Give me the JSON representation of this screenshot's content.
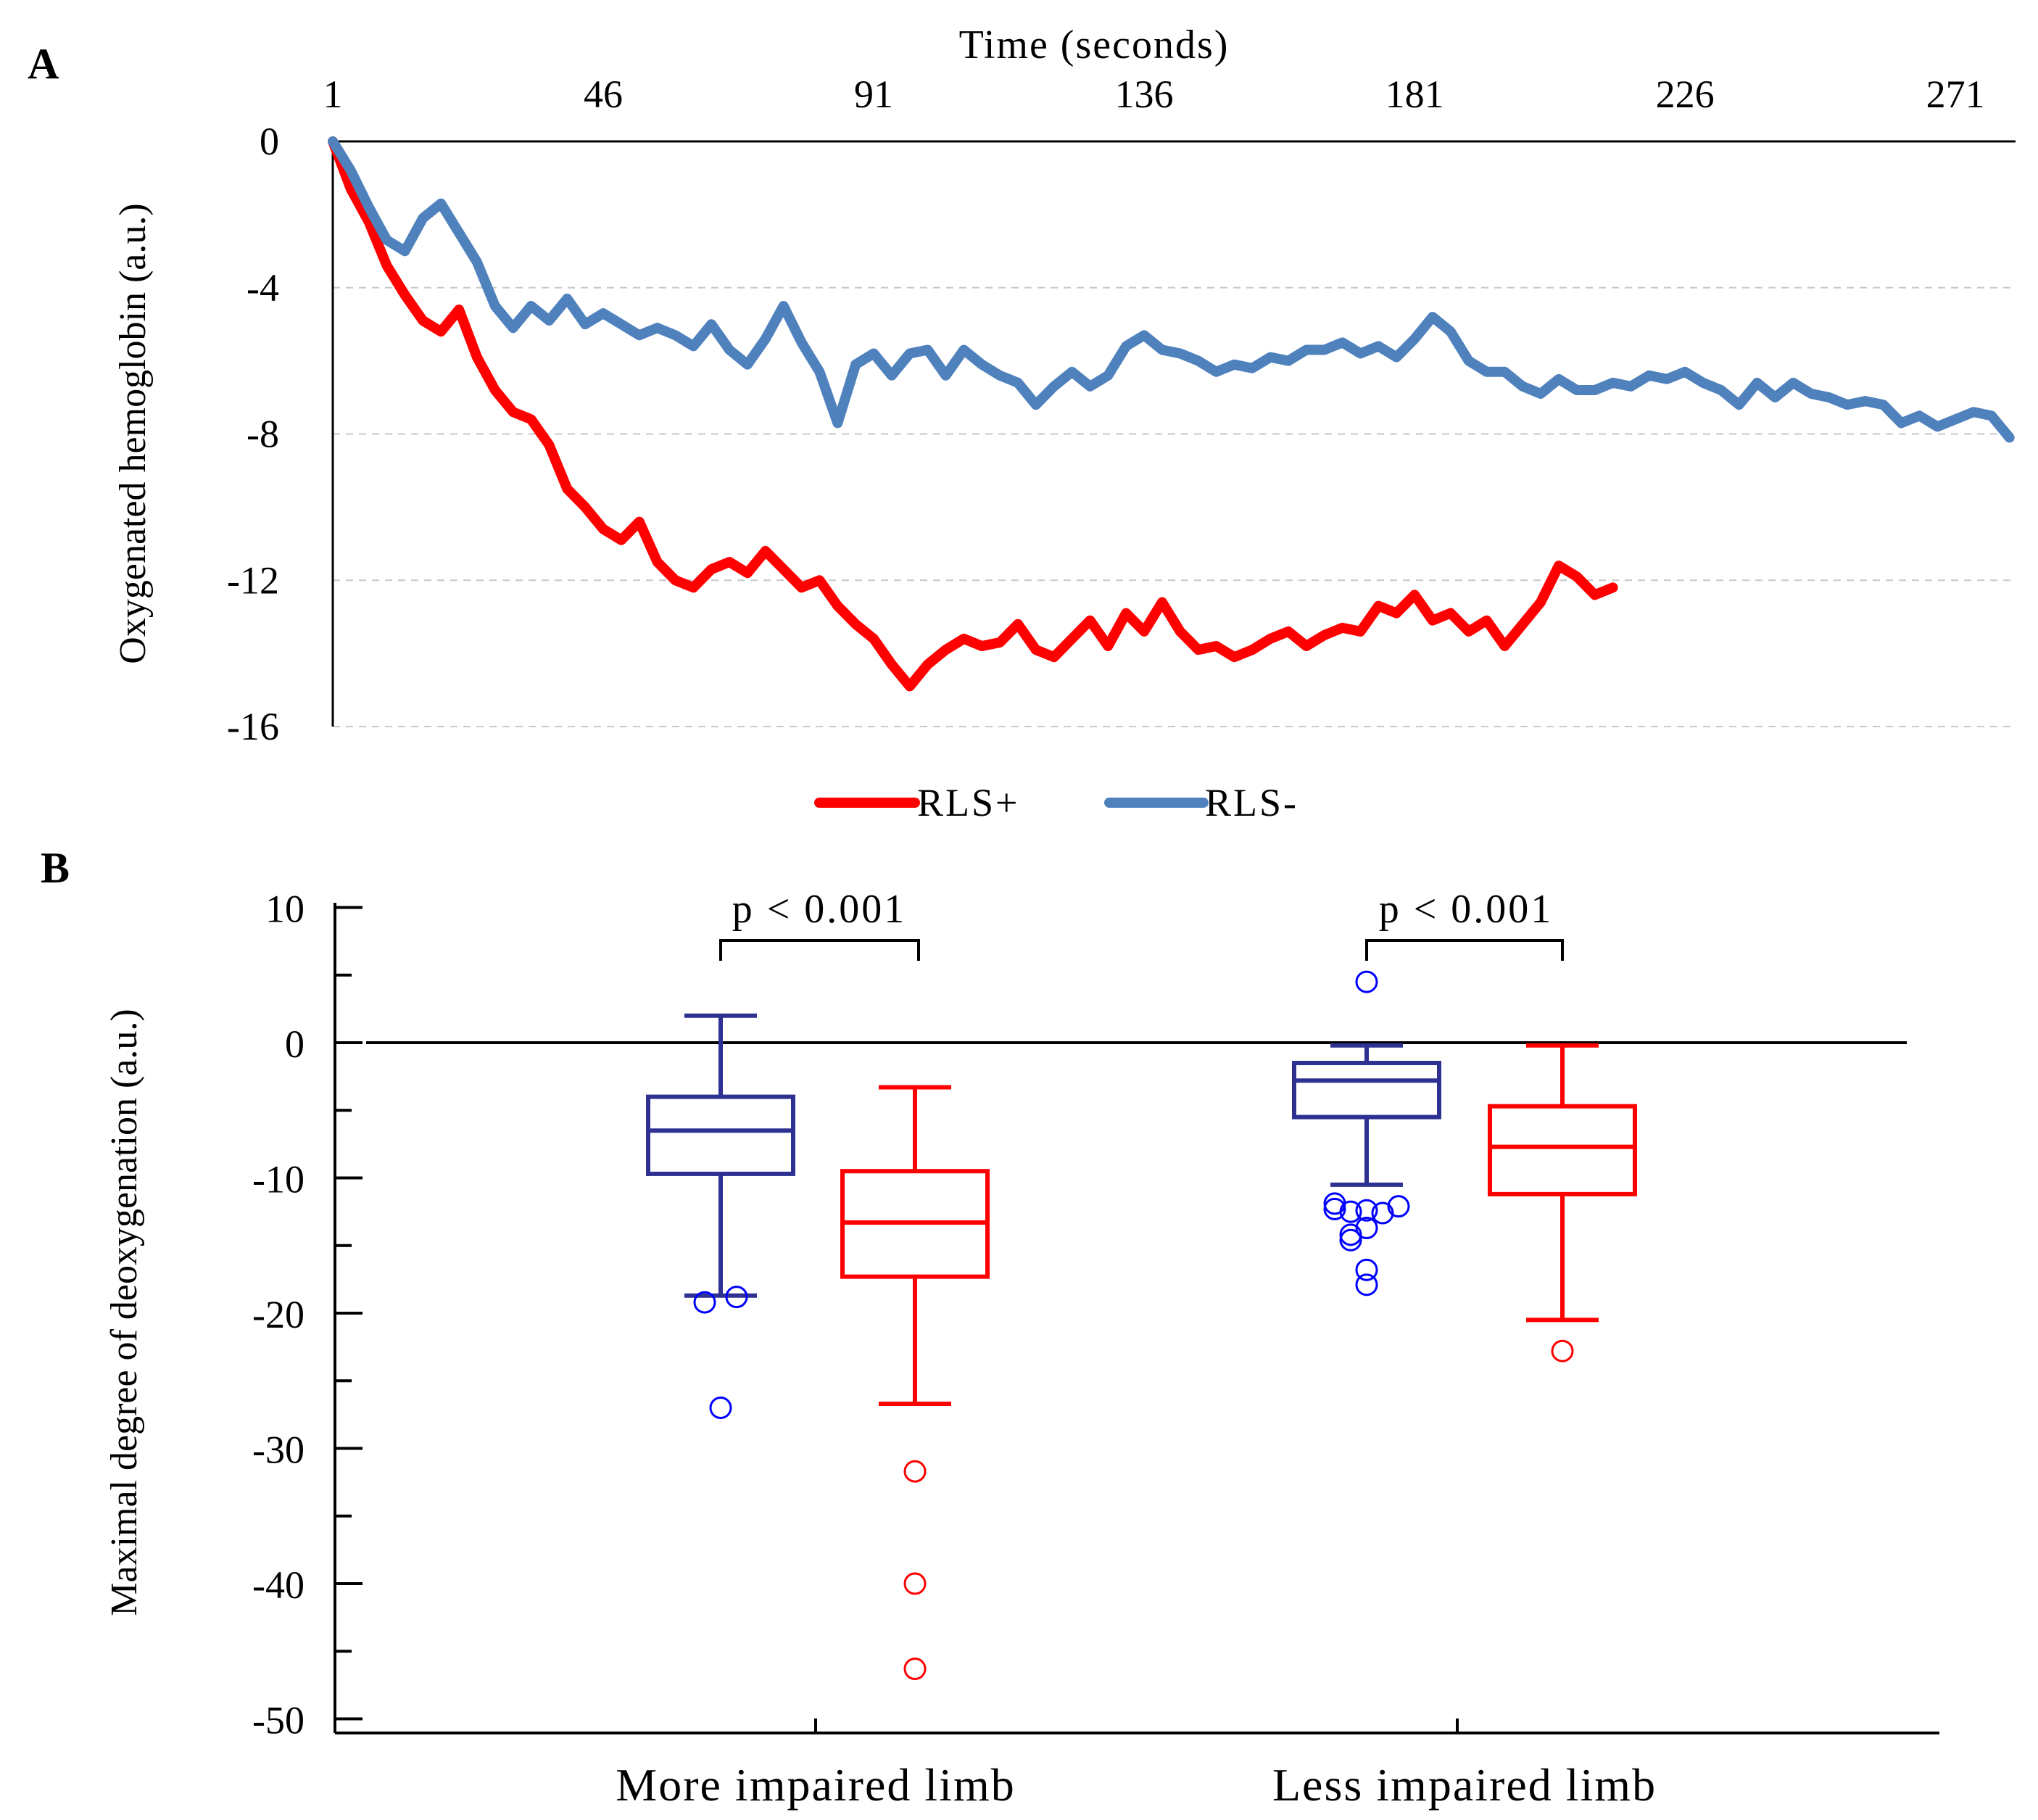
{
  "panels": {
    "a_letter": "A",
    "b_letter": "B"
  },
  "chart_data": [
    {
      "type": "line",
      "panel": "A",
      "xlabel": "Time (seconds)",
      "ylabel": "Oxygenated hemoglobin (a.u.)",
      "x_ticks": [
        "1",
        "46",
        "91",
        "136",
        "181",
        "226",
        "271"
      ],
      "x_tick_values": [
        1,
        46,
        91,
        136,
        181,
        226,
        271
      ],
      "xlim": [
        1,
        281
      ],
      "y_ticks": [
        "0",
        "-4",
        "-8",
        "-12",
        "-16"
      ],
      "y_tick_values": [
        0,
        -4,
        -8,
        -12,
        -16
      ],
      "ylim": [
        -16,
        0
      ],
      "x_axis_position": "top",
      "grid": "horizontal dashed",
      "legend_position": "bottom-center",
      "series": [
        {
          "name": "RLS+",
          "color": "#ff0000",
          "x": [
            1,
            4,
            7,
            10,
            13,
            16,
            19,
            22,
            25,
            28,
            31,
            34,
            37,
            40,
            43,
            46,
            49,
            52,
            55,
            58,
            61,
            64,
            67,
            70,
            73,
            76,
            79,
            82,
            85,
            88,
            91,
            94,
            97,
            100,
            103,
            106,
            109,
            112,
            115,
            118,
            121,
            124,
            127,
            130,
            133,
            136,
            139,
            142,
            145,
            148,
            151,
            154,
            157,
            160,
            163,
            166,
            169,
            172,
            175,
            178,
            181,
            184,
            187,
            190,
            193,
            196,
            199,
            202,
            205,
            208,
            211,
            214
          ],
          "y": [
            0,
            -1.3,
            -2.2,
            -3.4,
            -4.2,
            -4.9,
            -5.2,
            -4.6,
            -5.9,
            -6.8,
            -7.4,
            -7.6,
            -8.3,
            -9.5,
            -10.0,
            -10.6,
            -10.9,
            -10.4,
            -11.5,
            -12.0,
            -12.2,
            -11.7,
            -11.5,
            -11.8,
            -11.2,
            -11.7,
            -12.2,
            -12.0,
            -12.7,
            -13.2,
            -13.6,
            -14.3,
            -14.9,
            -14.3,
            -13.9,
            -13.6,
            -13.8,
            -13.7,
            -13.2,
            -13.9,
            -14.1,
            -13.6,
            -13.1,
            -13.8,
            -12.9,
            -13.4,
            -12.6,
            -13.4,
            -13.9,
            -13.8,
            -14.1,
            -13.9,
            -13.6,
            -13.4,
            -13.8,
            -13.5,
            -13.3,
            -13.4,
            -12.7,
            -12.9,
            -12.4,
            -13.1,
            -12.9,
            -13.4,
            -13.1,
            -13.8,
            -13.2,
            -12.6,
            -11.6,
            -11.9,
            -12.4,
            -12.2
          ]
        },
        {
          "name": "RLS-",
          "color": "#4f81bd",
          "x": [
            1,
            4,
            7,
            10,
            13,
            16,
            19,
            22,
            25,
            28,
            31,
            34,
            37,
            40,
            43,
            46,
            49,
            52,
            55,
            58,
            61,
            64,
            67,
            70,
            73,
            76,
            79,
            82,
            85,
            88,
            91,
            94,
            97,
            100,
            103,
            106,
            109,
            112,
            115,
            118,
            121,
            124,
            127,
            130,
            133,
            136,
            139,
            142,
            145,
            148,
            151,
            154,
            157,
            160,
            163,
            166,
            169,
            172,
            175,
            178,
            181,
            184,
            187,
            190,
            193,
            196,
            199,
            202,
            205,
            208,
            211,
            214,
            217,
            220,
            223,
            226,
            229,
            232,
            235,
            238,
            241,
            244,
            247,
            250,
            253,
            256,
            259,
            262,
            265,
            268,
            271,
            274,
            277,
            280
          ],
          "y": [
            0,
            -0.8,
            -1.8,
            -2.7,
            -3.0,
            -2.1,
            -1.7,
            -2.5,
            -3.3,
            -4.5,
            -5.1,
            -4.5,
            -4.9,
            -4.3,
            -5.0,
            -4.7,
            -5.0,
            -5.3,
            -5.1,
            -5.3,
            -5.6,
            -5.0,
            -5.7,
            -6.1,
            -5.4,
            -4.5,
            -5.5,
            -6.3,
            -7.7,
            -6.1,
            -5.8,
            -6.4,
            -5.8,
            -5.7,
            -6.4,
            -5.7,
            -6.1,
            -6.4,
            -6.6,
            -7.2,
            -6.7,
            -6.3,
            -6.7,
            -6.4,
            -5.6,
            -5.3,
            -5.7,
            -5.8,
            -6.0,
            -6.3,
            -6.1,
            -6.2,
            -5.9,
            -6.0,
            -5.7,
            -5.7,
            -5.5,
            -5.8,
            -5.6,
            -5.9,
            -5.4,
            -4.8,
            -5.2,
            -6.0,
            -6.3,
            -6.3,
            -6.7,
            -6.9,
            -6.5,
            -6.8,
            -6.8,
            -6.6,
            -6.7,
            -6.4,
            -6.5,
            -6.3,
            -6.6,
            -6.8,
            -7.2,
            -6.6,
            -7.0,
            -6.6,
            -6.9,
            -7.0,
            -7.2,
            -7.1,
            -7.2,
            -7.7,
            -7.5,
            -7.8,
            -7.6,
            -7.4,
            -7.5,
            -8.1
          ]
        }
      ],
      "legend": [
        "RLS+",
        "RLS-"
      ]
    },
    {
      "type": "box",
      "panel": "B",
      "ylabel": "Maximal degree of deoxygenation (a.u.)",
      "categories": [
        "More impaired limb",
        "Less impaired limb"
      ],
      "y_ticks": [
        "10",
        "0",
        "-10",
        "-20",
        "-30",
        "-40",
        "-50"
      ],
      "y_tick_values": [
        10,
        0,
        -10,
        -20,
        -30,
        -40,
        -50
      ],
      "ylim": [
        -51,
        11
      ],
      "reference_line": 0,
      "annotations": [
        "p < 0.001",
        "p < 0.001"
      ],
      "boxes": [
        {
          "category": "More impaired limb",
          "series": "RLS-",
          "color": "#2e3192",
          "whisker_high": 2,
          "q3": -4,
          "median": -6.5,
          "q1": -9.7,
          "whisker_low": -18.7,
          "outliers": [
            -19.2,
            -18.8,
            -27
          ]
        },
        {
          "category": "More impaired limb",
          "series": "RLS+",
          "color": "#ff0000",
          "whisker_high": -3.3,
          "q3": -9.5,
          "median": -13.3,
          "q1": -17.3,
          "whisker_low": -26.7,
          "outliers": [
            -31.7,
            -40,
            -46.3
          ]
        },
        {
          "category": "Less impaired limb",
          "series": "RLS-",
          "color": "#2e3192",
          "whisker_high": -0.2,
          "q3": -1.5,
          "median": -2.8,
          "q1": -5.5,
          "whisker_low": -10.5,
          "outliers": [
            4.5,
            -12.4,
            -12.5,
            -12.6,
            -12.3,
            -12.1,
            -11.9,
            -13.7,
            -14.2,
            -14.6,
            -16.8,
            -17.9
          ]
        },
        {
          "category": "Less impaired limb",
          "series": "RLS+",
          "color": "#ff0000",
          "whisker_high": -0.2,
          "q3": -4.7,
          "median": -7.7,
          "q1": -11.2,
          "whisker_low": -20.5,
          "outliers": [
            -22.8
          ]
        }
      ]
    }
  ]
}
